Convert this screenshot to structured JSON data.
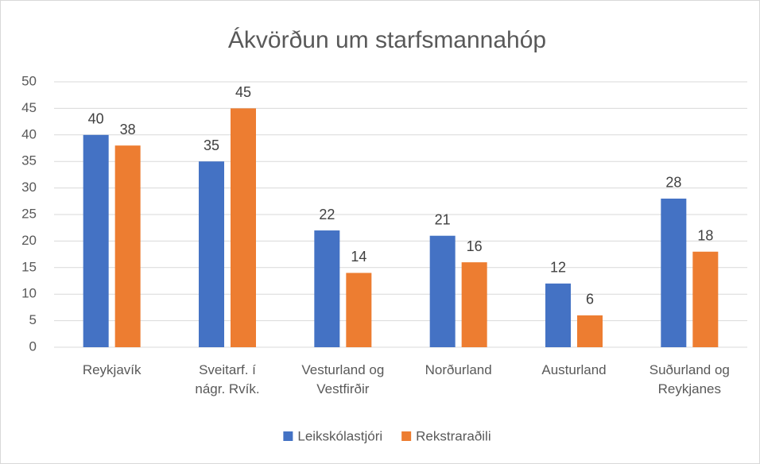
{
  "chart_data": {
    "type": "bar",
    "title": "Ákvörðun um starfsmannahóp",
    "categories": [
      "Reykjavík",
      "Sveitarf. í nágr. Rvík.",
      "Vesturland og Vestfirðir",
      "Norðurland",
      "Austurland",
      "Suðurland og Reykjanes"
    ],
    "series": [
      {
        "name": "Leikskólastjóri",
        "color": "#4472c4",
        "values": [
          40,
          35,
          22,
          21,
          12,
          28
        ]
      },
      {
        "name": "Rekstraraðili",
        "color": "#ed7d31",
        "values": [
          38,
          45,
          14,
          16,
          6,
          18
        ]
      }
    ],
    "ylim": [
      0,
      50
    ],
    "yticks": [
      0,
      5,
      10,
      15,
      20,
      25,
      30,
      35,
      40,
      45,
      50
    ],
    "grid": true,
    "legend": "bottom"
  }
}
